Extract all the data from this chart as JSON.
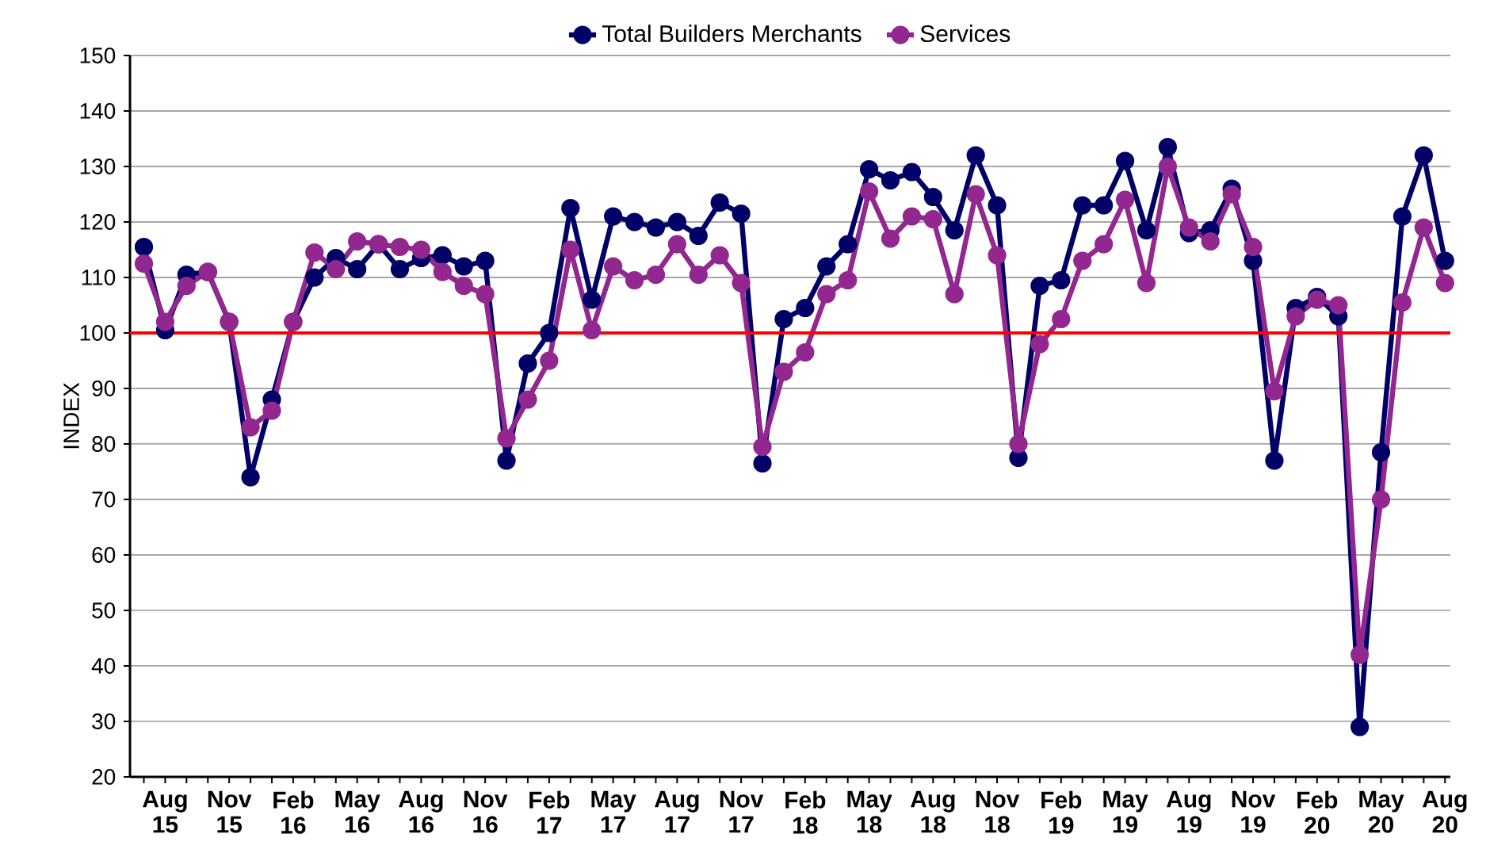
{
  "chart_data": {
    "type": "line",
    "ylabel": "INDEX",
    "categories": [
      null,
      "Aug 15",
      null,
      null,
      "Nov 15",
      null,
      null,
      "Feb 16",
      null,
      null,
      "May 16",
      null,
      null,
      "Aug 16",
      null,
      null,
      "Nov 16",
      null,
      null,
      "Feb 17",
      null,
      null,
      "May 17",
      null,
      null,
      "Aug 17",
      null,
      null,
      "Nov 17",
      null,
      null,
      "Feb 18",
      null,
      null,
      "May 18",
      null,
      null,
      "Aug 18",
      null,
      null,
      "Nov 18",
      null,
      null,
      "Feb 19",
      null,
      null,
      "May 19",
      null,
      null,
      "Aug 19",
      null,
      null,
      "Nov 19",
      null,
      null,
      "Feb 20",
      null,
      null,
      "May 20",
      null,
      null,
      "Aug 20"
    ],
    "series": [
      {
        "name": "Total Builders Merchants",
        "color": "#000066",
        "values": [
          115.5,
          100.5,
          110.5,
          111,
          102,
          74,
          88,
          102,
          110,
          113.5,
          111.5,
          116,
          111.5,
          113.5,
          114,
          112,
          113,
          77,
          94.5,
          100,
          122.5,
          106,
          121,
          120,
          119,
          120,
          117.5,
          123.5,
          121.5,
          76.5,
          102.5,
          104.5,
          112,
          116,
          129.5,
          127.5,
          129,
          124.5,
          118.5,
          132,
          123,
          77.5,
          108.5,
          109.5,
          123,
          123,
          131,
          118.5,
          133.5,
          118,
          118.5,
          126,
          113,
          77,
          104.5,
          106.5,
          103,
          29,
          78.5,
          121,
          132,
          113
        ]
      },
      {
        "name": "Services",
        "color": "#92278f",
        "values": [
          112.5,
          102,
          108.5,
          111,
          102,
          83,
          86,
          102,
          114.5,
          111.5,
          116.5,
          116,
          115.5,
          115,
          111,
          108.5,
          107,
          81,
          88,
          95,
          115,
          100.5,
          112,
          109.5,
          110.5,
          116,
          110.5,
          114,
          109,
          79.5,
          93,
          96.5,
          107,
          109.5,
          125.5,
          117,
          121,
          120.5,
          107,
          125,
          114,
          80,
          98,
          102.5,
          113,
          116,
          124,
          109,
          130,
          119,
          116.5,
          125,
          115.5,
          89.5,
          103,
          106,
          105,
          42,
          70,
          105.5,
          119,
          109
        ]
      }
    ],
    "ylim": [
      20,
      150
    ],
    "yticks": [
      20,
      30,
      40,
      50,
      60,
      70,
      80,
      90,
      100,
      110,
      120,
      130,
      140,
      150
    ],
    "ref_lines": [
      {
        "axis": "y",
        "value": 100,
        "color": "#ff0000"
      }
    ],
    "grid": "y",
    "legend": "top",
    "marker": "circle",
    "line_style": "solid"
  }
}
